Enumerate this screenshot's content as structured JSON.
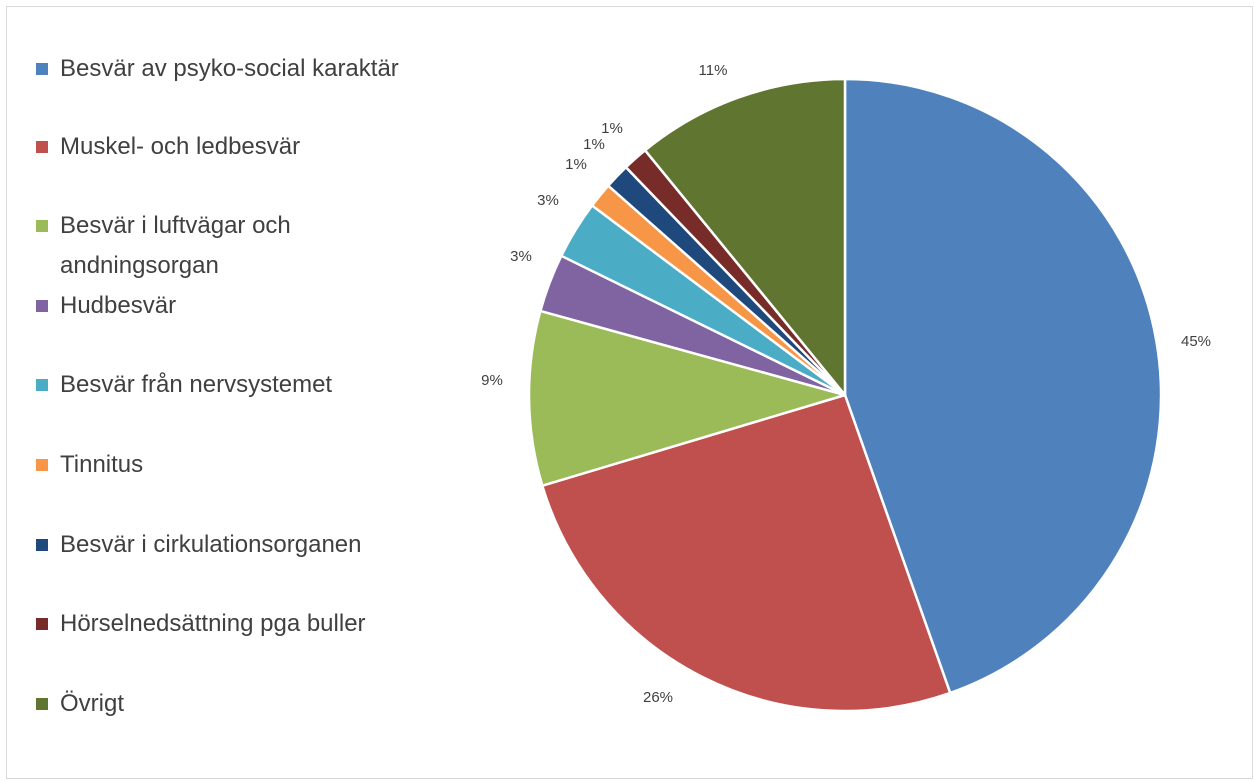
{
  "chart_data": {
    "type": "pie",
    "title": "",
    "legend_position": "left",
    "slices": [
      {
        "label": "Besvär av psyko-social karaktär",
        "value": 45,
        "value_label": "45%",
        "color": "#4f81bd"
      },
      {
        "label": "Muskel- och ledbesvär",
        "value": 26,
        "value_label": "26%",
        "color": "#c0504d"
      },
      {
        "label": "Besvär i luftvägar och andningsorgan",
        "value": 9,
        "value_label": "9%",
        "color": "#9bbb59"
      },
      {
        "label": "Hudbesvär",
        "value": 3,
        "value_label": "3%",
        "color": "#8064a2"
      },
      {
        "label": "Besvär från nervsystemet",
        "value": 3,
        "value_label": "3%",
        "color": "#4bacc6"
      },
      {
        "label": "Tinnitus",
        "value": 1.3,
        "value_label": "1%",
        "color": "#f79646"
      },
      {
        "label": "Besvär i cirkulationsorganen",
        "value": 1.3,
        "value_label": "1%",
        "color": "#1f497d"
      },
      {
        "label": "Hörselnedsättning pga buller",
        "value": 1.3,
        "value_label": "1%",
        "color": "#772c2a"
      },
      {
        "label": "Övrigt",
        "value": 11,
        "value_label": "11%",
        "color": "#5f7530"
      }
    ]
  }
}
